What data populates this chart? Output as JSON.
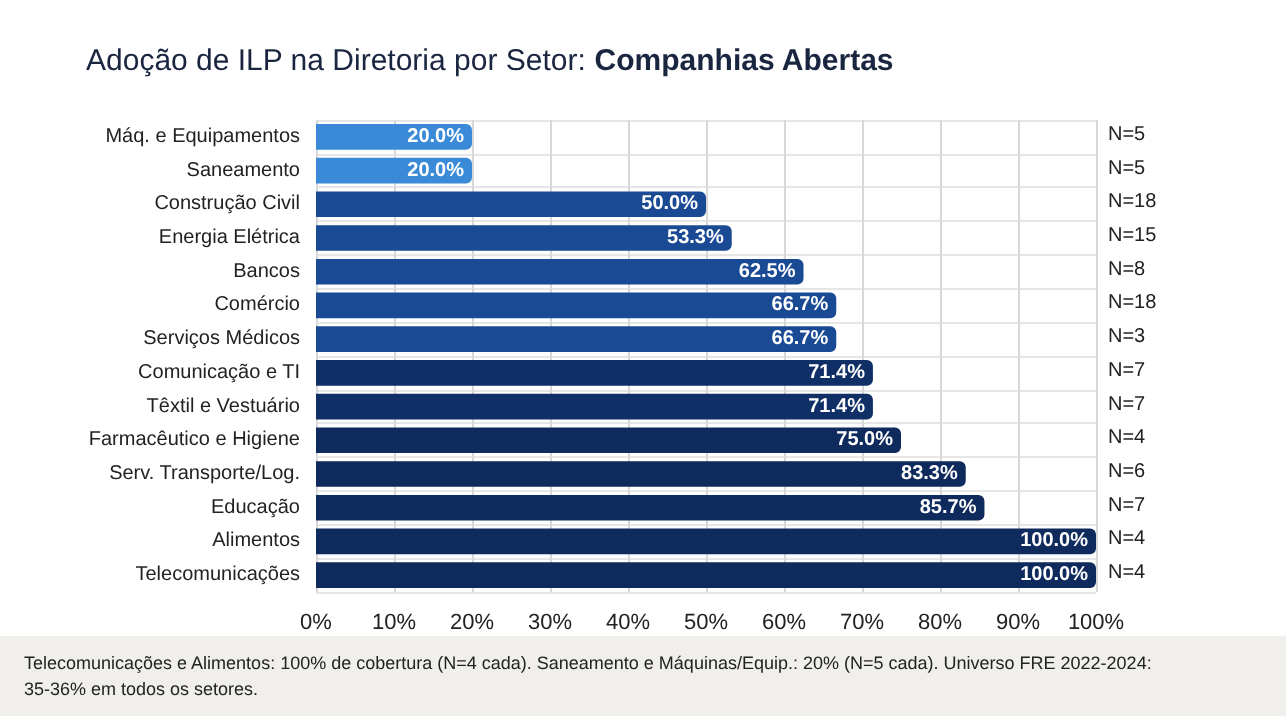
{
  "chart_data": {
    "type": "bar",
    "orientation": "horizontal",
    "title": "Adoção de ILP na Diretoria por Setor: Companhias Abertas",
    "categories": [
      "Máq. e Equipamentos",
      "Saneamento",
      "Construção Civil",
      "Energia Elétrica",
      "Bancos",
      "Comércio",
      "Serviços Médicos",
      "Comunicação e TI",
      "Têxtil e Vestuário",
      "Farmacêutico e Higiene",
      "Serv. Transporte/Log.",
      "Educação",
      "Alimentos",
      "Telecomunicações"
    ],
    "values": [
      20.0,
      20.0,
      50.0,
      53.3,
      62.5,
      66.7,
      66.7,
      71.4,
      71.4,
      75.0,
      83.3,
      85.7,
      100.0,
      100.0
    ],
    "value_labels": [
      "20.0%",
      "20.0%",
      "50.0%",
      "53.3%",
      "62.5%",
      "66.7%",
      "66.7%",
      "71.4%",
      "71.4%",
      "75.0%",
      "83.3%",
      "85.7%",
      "100.0%",
      "100.0%"
    ],
    "colors": [
      "#3b8ad8",
      "#3b8ad8",
      "#1a4a94",
      "#1a4a94",
      "#1a4a94",
      "#1a4a94",
      "#1a4a94",
      "#0f2f66",
      "#0f2f66",
      "#0f2a5c",
      "#0f2a5c",
      "#0f2a5c",
      "#0f2a5c",
      "#0f2a5c"
    ],
    "xlim": [
      0,
      100
    ],
    "xticks": [
      {
        "value": 0,
        "label": "0%"
      },
      {
        "value": 10,
        "label": "10%"
      },
      {
        "value": 20,
        "label": "20%"
      },
      {
        "value": 30,
        "label": "30%"
      },
      {
        "value": 40,
        "label": "40%"
      },
      {
        "value": 50,
        "label": "50%"
      },
      {
        "value": 60,
        "label": "60%"
      },
      {
        "value": 70,
        "label": "70%"
      },
      {
        "value": 80,
        "label": "80%"
      },
      {
        "value": 90,
        "label": "90%"
      },
      {
        "value": 100,
        "label": "100%"
      }
    ],
    "grid": true,
    "annotations": [
      "N=5",
      "N=5",
      "N=18",
      "N=15",
      "N=8",
      "N=18",
      "N=3",
      "N=7",
      "N=7",
      "N=4",
      "N=6",
      "N=7",
      "N=4",
      "N=4",
      "Telecomunicações e Alimentos: 100% de cobertura (N=4 cada). Saneamento e Máquinas/Equip.: 20% (N=5 cada). Universo FRE 2022-2024: 35-36% em todos os setores."
    ]
  }
}
